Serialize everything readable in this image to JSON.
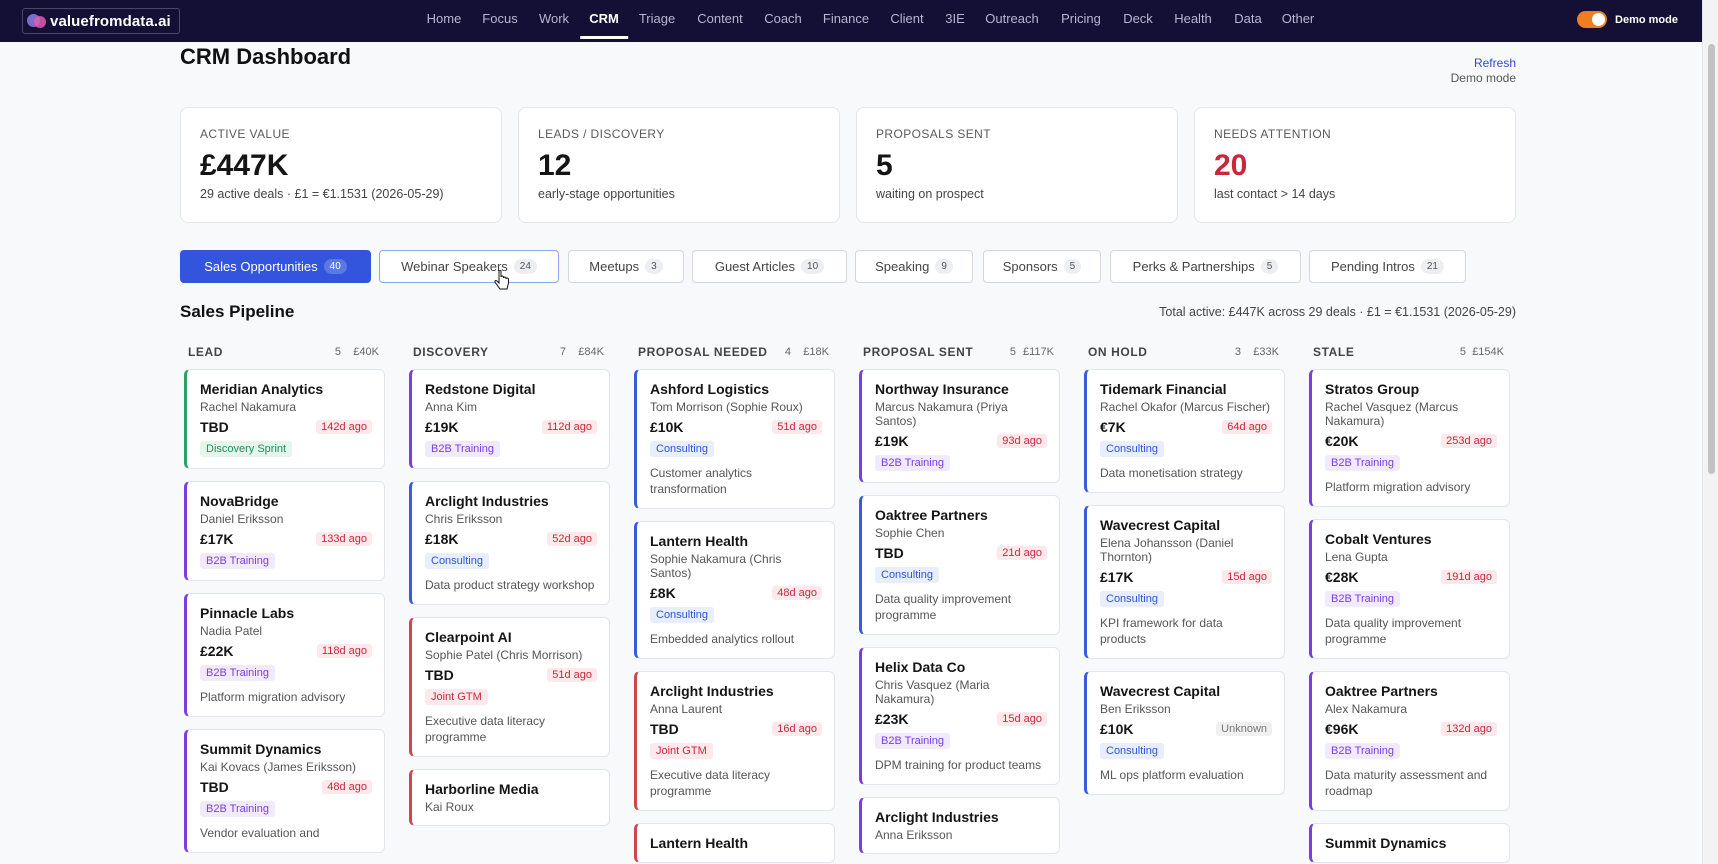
{
  "brand": {
    "name": "valuefromdata.ai"
  },
  "nav": [
    "Home",
    "Focus",
    "Work",
    "CRM",
    "Triage",
    "Content",
    "Coach",
    "Finance",
    "Client",
    "3IE",
    "Outreach",
    "Pricing",
    "Deck",
    "Health",
    "Data",
    "Other"
  ],
  "nav_active": "CRM",
  "demo_label": "Demo mode",
  "page": {
    "title": "CRM Dashboard",
    "refresh": "Refresh",
    "mode": "Demo mode"
  },
  "stats": [
    {
      "label": "ACTIVE VALUE",
      "value": "£447K",
      "sub": "29 active deals · £1 = €1.1531 (2026-05-29)",
      "alert": false
    },
    {
      "label": "LEADS / DISCOVERY",
      "value": "12",
      "sub": "early-stage opportunities",
      "alert": false
    },
    {
      "label": "PROPOSALS SENT",
      "value": "5",
      "sub": "waiting on prospect",
      "alert": false
    },
    {
      "label": "NEEDS ATTENTION",
      "value": "20",
      "sub": "last contact > 14 days",
      "alert": true
    }
  ],
  "tabs": [
    {
      "label": "Sales Opportunities",
      "count": "40"
    },
    {
      "label": "Webinar Speakers",
      "count": "24"
    },
    {
      "label": "Meetups",
      "count": "3"
    },
    {
      "label": "Guest Articles",
      "count": "10"
    },
    {
      "label": "Speaking",
      "count": "9"
    },
    {
      "label": "Sponsors",
      "count": "5"
    },
    {
      "label": "Perks & Partnerships",
      "count": "5"
    },
    {
      "label": "Pending Intros",
      "count": "21"
    }
  ],
  "pipeline": {
    "title": "Sales Pipeline",
    "total": "Total active: £447K across 29 deals · £1 = €1.1531 (2026-05-29)",
    "columns": [
      {
        "name": "LEAD",
        "count": "5",
        "value": "£40K",
        "cards": [
          {
            "name": "Meridian Analytics",
            "contact": "Rachel Nakamura",
            "value": "TBD",
            "age": "142d ago",
            "tag": "Discovery Sprint",
            "desc": ""
          },
          {
            "name": "NovaBridge",
            "contact": "Daniel Eriksson",
            "value": "£17K",
            "age": "133d ago",
            "tag": "B2B Training",
            "desc": ""
          },
          {
            "name": "Pinnacle Labs",
            "contact": "Nadia Patel",
            "value": "£22K",
            "age": "118d ago",
            "tag": "B2B Training",
            "desc": "Platform migration advisory"
          },
          {
            "name": "Summit Dynamics",
            "contact": "Kai Kovacs (James Eriksson)",
            "value": "TBD",
            "age": "48d ago",
            "tag": "B2B Training",
            "desc": "Vendor evaluation and"
          }
        ]
      },
      {
        "name": "DISCOVERY",
        "count": "7",
        "value": "£84K",
        "cards": [
          {
            "name": "Redstone Digital",
            "contact": "Anna Kim",
            "value": "£19K",
            "age": "112d ago",
            "tag": "B2B Training",
            "desc": ""
          },
          {
            "name": "Arclight Industries",
            "contact": "Chris Eriksson",
            "value": "£18K",
            "age": "52d ago",
            "tag": "Consulting",
            "desc": "Data product strategy workshop"
          },
          {
            "name": "Clearpoint AI",
            "contact": "Sophie Patel (Chris Morrison)",
            "value": "TBD",
            "age": "51d ago",
            "tag": "Joint GTM",
            "desc": "Executive data literacy programme"
          },
          {
            "name": "Harborline Media",
            "contact": "Kai Roux",
            "value": "",
            "age": "",
            "tag": "",
            "desc": ""
          }
        ]
      },
      {
        "name": "PROPOSAL NEEDED",
        "count": "4",
        "value": "£18K",
        "cards": [
          {
            "name": "Ashford Logistics",
            "contact": "Tom Morrison (Sophie Roux)",
            "value": "£10K",
            "age": "51d ago",
            "tag": "Consulting",
            "desc": "Customer analytics transformation"
          },
          {
            "name": "Lantern Health",
            "contact": "Sophie Nakamura (Chris Santos)",
            "value": "£8K",
            "age": "48d ago",
            "tag": "Consulting",
            "desc": "Embedded analytics rollout"
          },
          {
            "name": "Arclight Industries",
            "contact": "Anna Laurent",
            "value": "TBD",
            "age": "16d ago",
            "tag": "Joint GTM",
            "desc": "Executive data literacy programme"
          },
          {
            "name": "Lantern Health",
            "contact": "",
            "value": "",
            "age": "",
            "tag": "",
            "desc": ""
          }
        ]
      },
      {
        "name": "PROPOSAL SENT",
        "count": "5",
        "value": "£117K",
        "cards": [
          {
            "name": "Northway Insurance",
            "contact": "Marcus Nakamura (Priya Santos)",
            "value": "£19K",
            "age": "93d ago",
            "tag": "B2B Training",
            "desc": ""
          },
          {
            "name": "Oaktree Partners",
            "contact": "Sophie Chen",
            "value": "TBD",
            "age": "21d ago",
            "tag": "Consulting",
            "desc": "Data quality improvement programme"
          },
          {
            "name": "Helix Data Co",
            "contact": "Chris Vasquez (Maria Nakamura)",
            "value": "£23K",
            "age": "15d ago",
            "tag": "B2B Training",
            "desc": "DPM training for product teams"
          },
          {
            "name": "Arclight Industries",
            "contact": "Anna Eriksson",
            "value": "",
            "age": "",
            "tag": "",
            "desc": ""
          }
        ]
      },
      {
        "name": "ON HOLD",
        "count": "3",
        "value": "£33K",
        "cards": [
          {
            "name": "Tidemark Financial",
            "contact": "Rachel Okafor (Marcus Fischer)",
            "value": "€7K",
            "age": "64d ago",
            "tag": "Consulting",
            "desc": "Data monetisation strategy"
          },
          {
            "name": "Wavecrest Capital",
            "contact": "Elena Johansson (Daniel Thornton)",
            "value": "£17K",
            "age": "15d ago",
            "tag": "Consulting",
            "desc": "KPI framework for data products"
          },
          {
            "name": "Wavecrest Capital",
            "contact": "Ben Eriksson",
            "value": "£10K",
            "age": "Unknown",
            "tag": "Consulting",
            "desc": "ML ops platform evaluation"
          }
        ]
      },
      {
        "name": "STALE",
        "count": "5",
        "value": "£154K",
        "cards": [
          {
            "name": "Stratos Group",
            "contact": "Rachel Vasquez (Marcus Nakamura)",
            "value": "€20K",
            "age": "253d ago",
            "tag": "B2B Training",
            "desc": "Platform migration advisory"
          },
          {
            "name": "Cobalt Ventures",
            "contact": "Lena Gupta",
            "value": "€28K",
            "age": "191d ago",
            "tag": "B2B Training",
            "desc": "Data quality improvement programme"
          },
          {
            "name": "Oaktree Partners",
            "contact": "Alex Nakamura",
            "value": "€96K",
            "age": "132d ago",
            "tag": "B2B Training",
            "desc": "Data maturity assessment and roadmap"
          },
          {
            "name": "Summit Dynamics",
            "contact": "",
            "value": "",
            "age": "",
            "tag": "",
            "desc": ""
          }
        ]
      }
    ]
  }
}
